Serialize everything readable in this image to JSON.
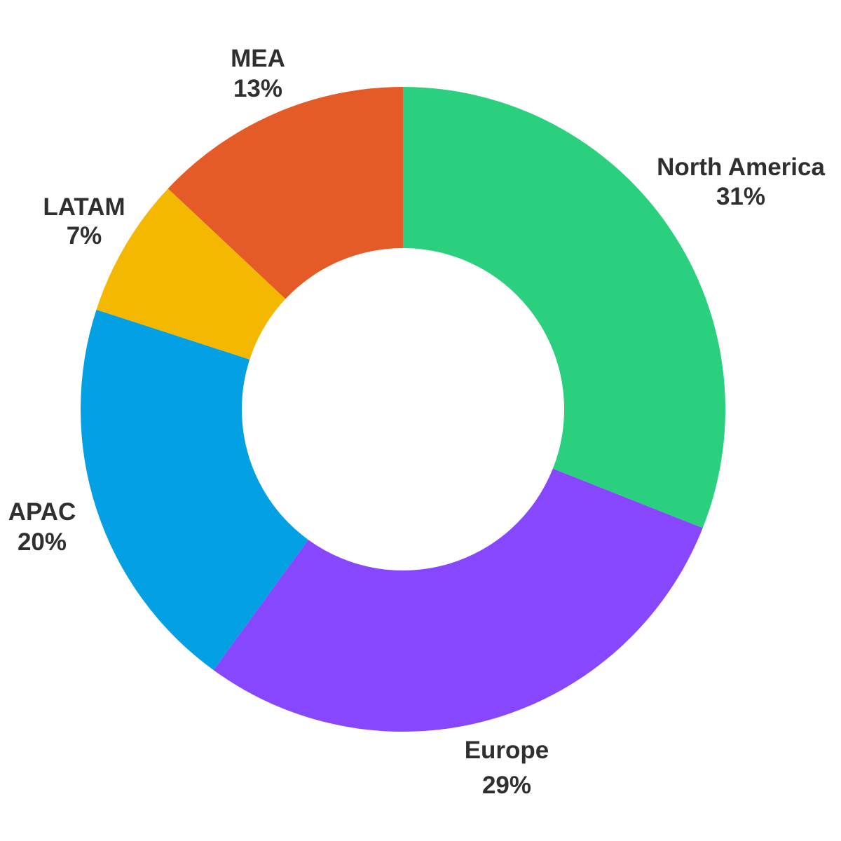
{
  "chart_data": {
    "type": "pie",
    "style": "donut",
    "categories": [
      "North America",
      "Europe",
      "APAC",
      "LATAM",
      "MEA"
    ],
    "values": [
      31,
      29,
      20,
      7,
      13
    ],
    "value_labels": [
      "31%",
      "29%",
      "20%",
      "7%",
      "13%"
    ],
    "colors": [
      "#2ad07d",
      "#8747ff",
      "#03a0e3",
      "#f5b800",
      "#e45b27"
    ],
    "start": "12 o'clock",
    "direction": "clockwise",
    "legend": "none"
  }
}
